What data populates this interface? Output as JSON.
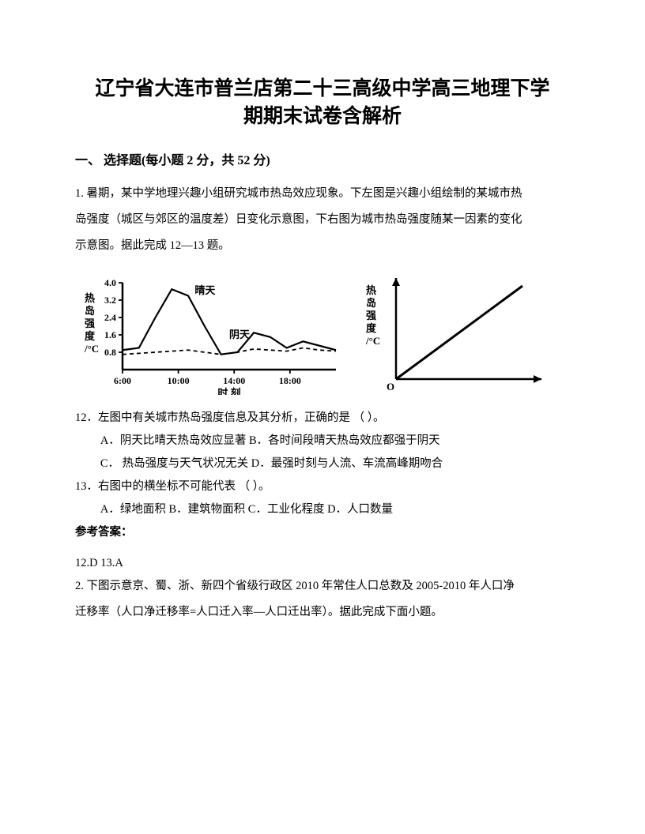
{
  "title_line1": "辽宁省大连市普兰店第二十三高级中学高三地理下学",
  "title_line2": "期期末试卷含解析",
  "section1": "一、 选择题(每小题 2 分，共 52 分)",
  "q1_intro1": "1. 暑期，某中学地理兴趣小组研究城市热岛效应现象。下左图是兴趣小组绘制的某城市热",
  "q1_intro2": "岛强度（城区与郊区的温度差）日变化示意图，下右图为城市热岛强度随某一因素的变化",
  "q1_intro3": "示意图。据此完成 12—13 题。",
  "q12": "12．左图中有关城市热岛强度信息及其分析，正确的是 （            ）。",
  "q12_a": "A．阴天比晴天热岛效应显著 B．各时间段晴天热岛效应都强于阴天",
  "q12_c": "C．  热岛强度与天气状况无关 D．最强时刻与人流、车流高峰期吻合",
  "q13": "13．右图中的横坐标不可能代表  （            ）。",
  "q13_opts": "A．绿地面积  B．建筑物面积      C．工业化程度       D．人口数量",
  "ans_head": "参考答案：",
  "ans": "12.D   13.A",
  "q2_intro1": "2. 下图示意京、蜀、浙、新四个省级行政区 2010 年常住人口总数及 2005-2010 年人口净",
  "q2_intro2": "迁移率（人口净迁移率=人口迁入率—人口迁出率）。据此完成下面小题。",
  "chart_left": {
    "type": "line",
    "y_label": "热岛强度/°C",
    "y_ticks": [
      "4.0",
      "3.2",
      "2.4",
      "1.6",
      "0.8"
    ],
    "x_label": "时 刻",
    "x_ticks": [
      "6:00",
      "10:00",
      "14:00",
      "18:00"
    ],
    "legend1": "晴天",
    "legend2": "阴天",
    "sunny_points": [
      [
        0,
        0.9
      ],
      [
        1,
        1.0
      ],
      [
        2,
        2.4
      ],
      [
        3,
        3.7
      ],
      [
        4,
        3.4
      ],
      [
        5,
        2.0
      ],
      [
        6,
        0.7
      ],
      [
        7,
        0.8
      ],
      [
        8,
        1.7
      ],
      [
        9,
        1.5
      ],
      [
        10,
        1.0
      ],
      [
        11,
        1.3
      ],
      [
        12,
        1.1
      ],
      [
        13,
        0.9
      ]
    ],
    "cloudy_points": [
      [
        0,
        0.7
      ],
      [
        1,
        0.75
      ],
      [
        2,
        0.8
      ],
      [
        3,
        0.85
      ],
      [
        4,
        0.9
      ],
      [
        5,
        0.8
      ],
      [
        6,
        0.7
      ],
      [
        7,
        0.8
      ],
      [
        8,
        0.95
      ],
      [
        9,
        0.9
      ],
      [
        10,
        0.85
      ],
      [
        11,
        1.0
      ],
      [
        12,
        0.9
      ],
      [
        13,
        0.85
      ]
    ],
    "line_color": "#000000",
    "line_width_sunny": 2.2,
    "line_width_cloudy": 1.8,
    "dash_cloudy": "5,4",
    "axis_color": "#000000",
    "background_color": "#ffffff",
    "font_size_axis": 12
  },
  "chart_right": {
    "type": "line",
    "y_label": "热岛强度/°C",
    "origin_label": "O",
    "line_color": "#000000",
    "line_width": 3,
    "axis_color": "#000000",
    "arrow": true,
    "points": [
      [
        0,
        0
      ],
      [
        1,
        1
      ]
    ],
    "font_size_axis": 12
  },
  "colors": {
    "text": "#000000",
    "bg": "#ffffff"
  }
}
